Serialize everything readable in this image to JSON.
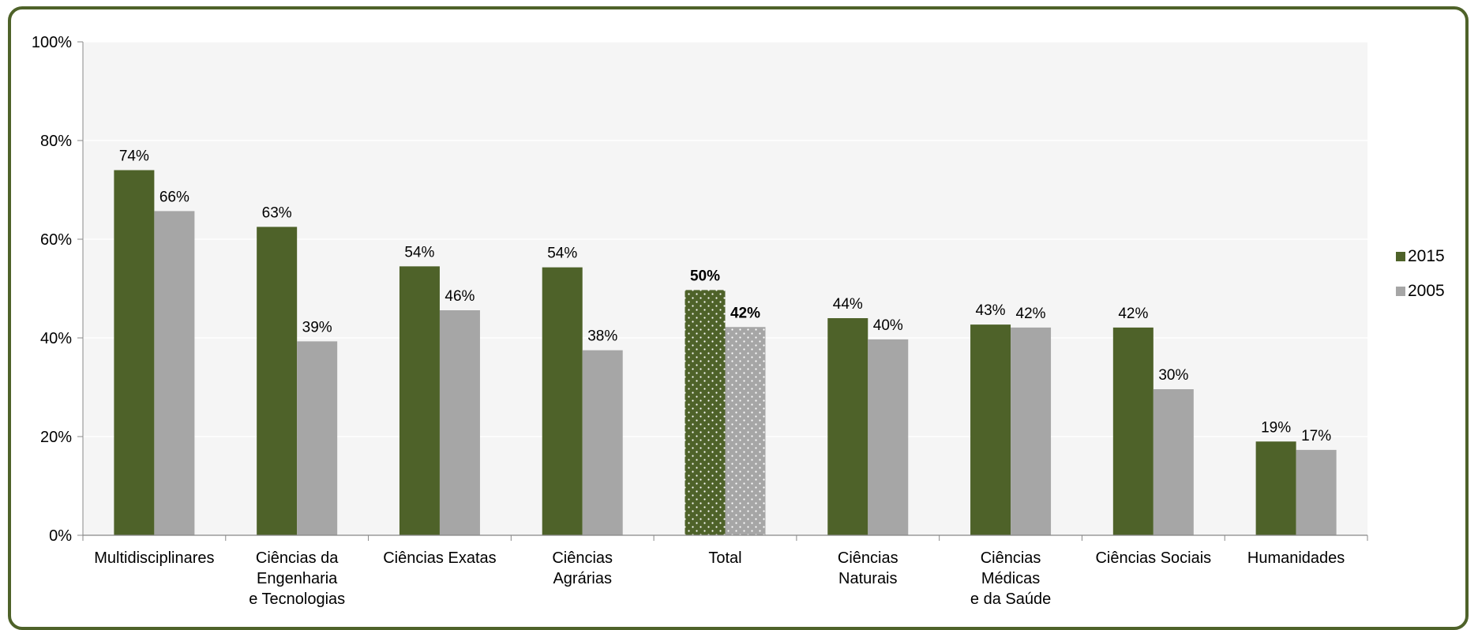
{
  "chart_data": {
    "type": "bar",
    "categories": [
      [
        "Multidisciplinares"
      ],
      [
        "Ciências da",
        "Engenharia",
        "e Tecnologias"
      ],
      [
        "Ciências Exatas"
      ],
      [
        "Ciências",
        "Agrárias"
      ],
      [
        "Total"
      ],
      [
        "Ciências",
        "Naturais"
      ],
      [
        "Ciências",
        "Médicas",
        "e da Saúde"
      ],
      [
        "Ciências Sociais"
      ],
      [
        "Humanidades"
      ]
    ],
    "series": [
      {
        "name": "2015",
        "color": "#4e6229",
        "values": [
          74,
          62.5,
          54.5,
          54.3,
          49.7,
          44,
          42.7,
          42.1,
          19
        ],
        "labels": [
          "74%",
          "63%",
          "54%",
          "54%",
          "50%",
          "44%",
          "43%",
          "42%",
          "19%"
        ]
      },
      {
        "name": "2005",
        "color": "#a6a6a6",
        "values": [
          65.7,
          39.3,
          45.6,
          37.5,
          42.2,
          39.7,
          42.1,
          29.6,
          17.3
        ],
        "labels": [
          "66%",
          "39%",
          "46%",
          "38%",
          "42%",
          "40%",
          "42%",
          "30%",
          "17%"
        ]
      }
    ],
    "highlight_category_index": 4,
    "yticks": [
      "0%",
      "20%",
      "40%",
      "60%",
      "80%",
      "100%"
    ],
    "ylim": [
      0,
      100
    ],
    "title": "",
    "xlabel": "",
    "ylabel": "",
    "grid": true,
    "legend": "right",
    "colors": {
      "frame": "#4e6229",
      "plot_background": "#f5f5f5",
      "gridline": "#ffffff",
      "axis": "#888888"
    }
  }
}
